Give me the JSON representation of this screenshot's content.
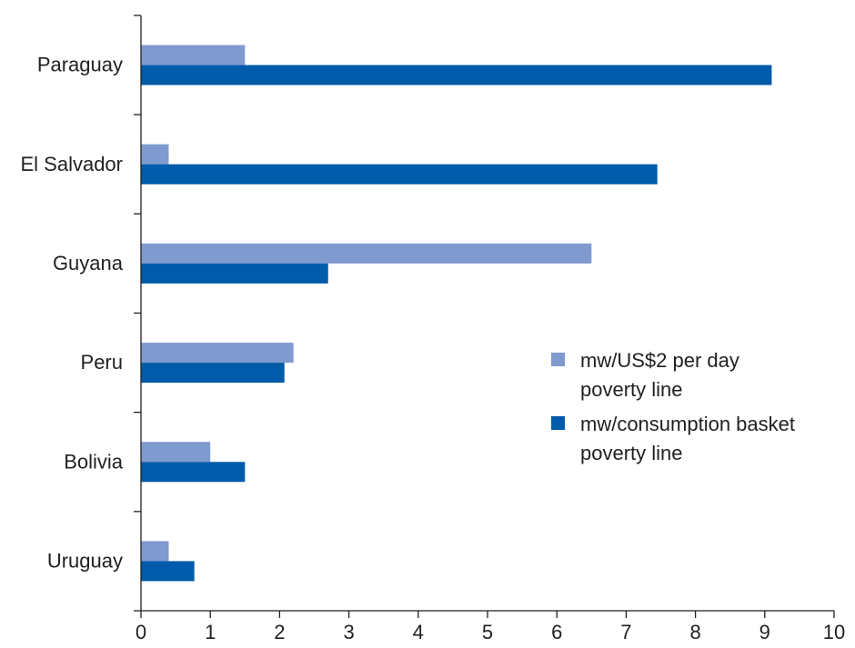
{
  "chart_data": {
    "type": "bar",
    "orientation": "horizontal",
    "categories": [
      "Paraguay",
      "El Salvador",
      "Guyana",
      "Peru",
      "Bolivia",
      "Uruguay"
    ],
    "series": [
      {
        "name": "mw/US$2 per day poverty line",
        "legend_lines": [
          "mw/US$2 per day",
          "poverty line"
        ],
        "color": "#7f9acf",
        "values": [
          1.5,
          0.4,
          6.5,
          2.2,
          1.0,
          0.4
        ]
      },
      {
        "name": "mw/consumption basket poverty line",
        "legend_lines": [
          "mw/consumption basket",
          "poverty line"
        ],
        "color": "#005baa",
        "values": [
          9.1,
          7.45,
          2.7,
          2.07,
          1.5,
          0.77
        ]
      }
    ],
    "xlim": [
      0,
      10
    ],
    "xticks": [
      "0",
      "1",
      "2",
      "3",
      "4",
      "5",
      "6",
      "7",
      "8",
      "9",
      "10"
    ],
    "title": "",
    "xlabel": "",
    "ylabel": "",
    "grid": false,
    "legend_position": "center-right"
  }
}
